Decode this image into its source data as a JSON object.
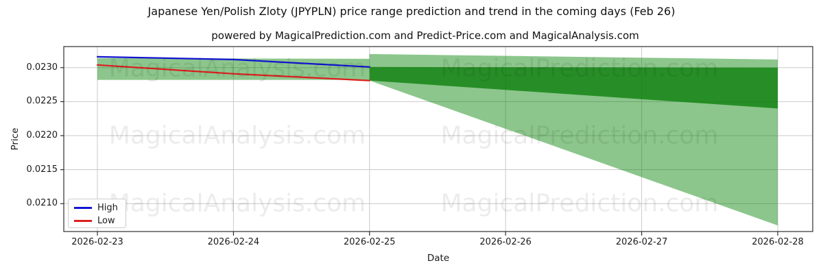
{
  "title": "Japanese Yen/Polish Zloty (JPYPLN) price range prediction and trend in the coming days (Feb 26)",
  "subtitle": "powered by MagicalPrediction.com and Predict-Price.com and MagicalAnalysis.com",
  "axes": {
    "x_label": "Date",
    "y_label": "Price",
    "x_ticks": [
      "2026-02-23",
      "2026-02-24",
      "2026-02-25",
      "2026-02-26",
      "2026-02-27",
      "2026-02-28"
    ],
    "y_ticks": [
      "0.0230",
      "0.0225",
      "0.0220",
      "0.0215",
      "0.0210"
    ]
  },
  "legend": {
    "items": [
      {
        "label": "High",
        "color": "#1313d2"
      },
      {
        "label": "Low",
        "color": "#dc1e1e"
      }
    ]
  },
  "watermarks": {
    "left_text": "MagicalAnalysis.com",
    "right_text": "MagicalPrediction.com"
  },
  "colors": {
    "high_line": "#1313d2",
    "low_line": "#dc1e1e",
    "band_light": "rgba(0,128,0,0.45)",
    "band_dark": "rgba(10,125,10,0.78)",
    "grid": "#c8c8c8",
    "frame": "#2e2e2e"
  },
  "chart_data": {
    "type": "line",
    "title": "Japanese Yen/Polish Zloty (JPYPLN) price range prediction and trend in the coming days (Feb 26)",
    "xlabel": "Date",
    "ylabel": "Price",
    "x": [
      "2026-02-23",
      "2026-02-24",
      "2026-02-25",
      "2026-02-26",
      "2026-02-27",
      "2026-02-28"
    ],
    "ylim": [
      0.02059,
      0.02331
    ],
    "grid": true,
    "legend_position": "lower left",
    "series": [
      {
        "name": "High",
        "x": [
          "2026-02-23",
          "2026-02-24",
          "2026-02-25"
        ],
        "values": [
          0.02316,
          0.02312,
          0.02301
        ]
      },
      {
        "name": "Low",
        "x": [
          "2026-02-23",
          "2026-02-24",
          "2026-02-25"
        ],
        "values": [
          0.02304,
          0.02291,
          0.02281
        ]
      }
    ],
    "bands": [
      {
        "name": "historical-range",
        "style": "light",
        "x": [
          "2026-02-23",
          "2026-02-25"
        ],
        "top": [
          0.02314,
          0.02313
        ],
        "bottom": [
          0.02282,
          0.02282
        ]
      },
      {
        "name": "prediction-outer",
        "style": "light",
        "x": [
          "2026-02-25",
          "2026-02-28"
        ],
        "top": [
          0.0232,
          0.02312
        ],
        "bottom": [
          0.02281,
          0.02068
        ]
      },
      {
        "name": "prediction-inner",
        "style": "dark",
        "x": [
          "2026-02-25",
          "2026-02-28"
        ],
        "top": [
          0.02301,
          0.023
        ],
        "bottom": [
          0.02281,
          0.0224
        ]
      }
    ]
  }
}
